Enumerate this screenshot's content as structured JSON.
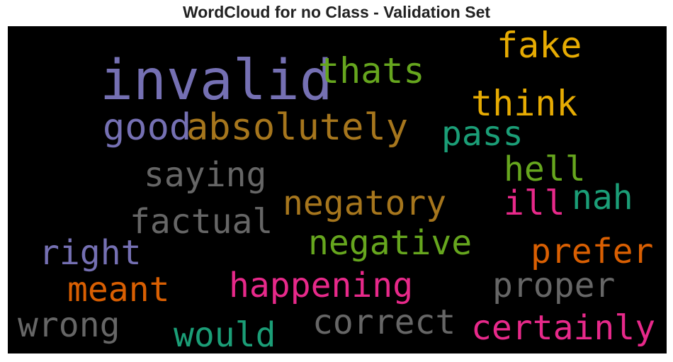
{
  "title": "WordCloud for no Class - Validation Set",
  "colors": {
    "background": "#000000",
    "purple": "#7570b3",
    "green": "#66a61e",
    "gold": "#e6ab02",
    "brown": "#a6761d",
    "teal": "#1b9e77",
    "gray": "#666666",
    "pink": "#e7298a",
    "orange": "#d95f02"
  },
  "words": [
    {
      "text": "invalid",
      "color": "#7570b3"
    },
    {
      "text": "thats",
      "color": "#66a61e"
    },
    {
      "text": "fake",
      "color": "#e6ab02"
    },
    {
      "text": "think",
      "color": "#e6ab02"
    },
    {
      "text": "good",
      "color": "#7570b3"
    },
    {
      "text": "absolutely",
      "color": "#a6761d"
    },
    {
      "text": "pass",
      "color": "#1b9e77"
    },
    {
      "text": "saying",
      "color": "#666666"
    },
    {
      "text": "hell",
      "color": "#66a61e"
    },
    {
      "text": "negatory",
      "color": "#a6761d"
    },
    {
      "text": "ill",
      "color": "#e7298a"
    },
    {
      "text": "nah",
      "color": "#1b9e77"
    },
    {
      "text": "factual",
      "color": "#666666"
    },
    {
      "text": "negative",
      "color": "#66a61e"
    },
    {
      "text": "right",
      "color": "#7570b3"
    },
    {
      "text": "prefer",
      "color": "#d95f02"
    },
    {
      "text": "meant",
      "color": "#d95f02"
    },
    {
      "text": "happening",
      "color": "#e7298a"
    },
    {
      "text": "proper",
      "color": "#666666"
    },
    {
      "text": "wrong",
      "color": "#666666"
    },
    {
      "text": "correct",
      "color": "#666666"
    },
    {
      "text": "certainly",
      "color": "#e7298a"
    },
    {
      "text": "would",
      "color": "#1b9e77"
    }
  ]
}
